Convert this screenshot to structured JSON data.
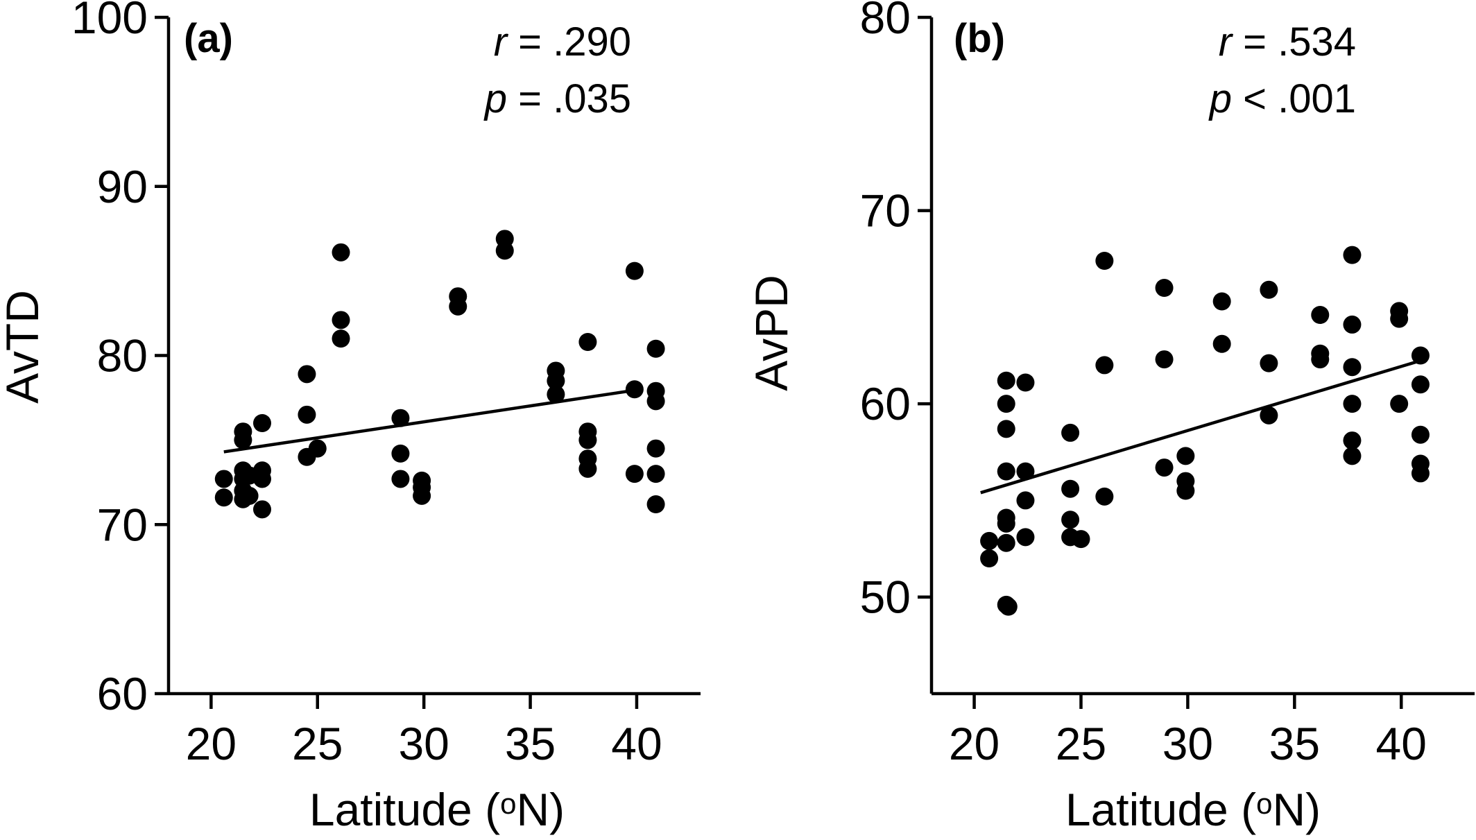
{
  "chart_data": [
    {
      "type": "scatter",
      "panel_label": "(a)",
      "xlabel": "Latitude (",
      "xlabel_sup": "o",
      "xlabel_end": "N)",
      "ylabel": "AvTD",
      "xlim": [
        18,
        43
      ],
      "ylim": [
        60,
        100
      ],
      "xticks": [
        20,
        25,
        30,
        35,
        40
      ],
      "yticks": [
        60,
        70,
        80,
        90,
        100
      ],
      "stats": {
        "r_symbol": "r",
        "r_text": " = .290",
        "p_symbol": "p",
        "p_text": " = .035"
      },
      "fit": {
        "x": [
          20.6,
          40.2
        ],
        "y": [
          74.3,
          78.0
        ]
      },
      "points": [
        [
          20.6,
          72.7
        ],
        [
          20.6,
          71.6
        ],
        [
          21.5,
          75.5
        ],
        [
          21.5,
          75.0
        ],
        [
          21.5,
          73.2
        ],
        [
          21.5,
          72.7
        ],
        [
          21.5,
          72.0
        ],
        [
          21.5,
          71.5
        ],
        [
          21.8,
          72.9
        ],
        [
          21.8,
          71.7
        ],
        [
          22.4,
          76.0
        ],
        [
          22.4,
          73.2
        ],
        [
          22.4,
          72.7
        ],
        [
          22.4,
          70.9
        ],
        [
          24.5,
          78.9
        ],
        [
          24.5,
          76.5
        ],
        [
          24.5,
          74.0
        ],
        [
          25.0,
          74.5
        ],
        [
          26.1,
          86.1
        ],
        [
          26.1,
          82.1
        ],
        [
          26.1,
          81.0
        ],
        [
          28.9,
          76.3
        ],
        [
          28.9,
          74.2
        ],
        [
          28.9,
          72.7
        ],
        [
          29.9,
          72.6
        ],
        [
          29.9,
          72.2
        ],
        [
          29.9,
          71.7
        ],
        [
          31.6,
          83.5
        ],
        [
          31.6,
          82.9
        ],
        [
          33.8,
          86.9
        ],
        [
          33.8,
          86.2
        ],
        [
          36.2,
          79.1
        ],
        [
          36.2,
          78.5
        ],
        [
          36.2,
          77.7
        ],
        [
          37.7,
          80.8
        ],
        [
          37.7,
          75.5
        ],
        [
          37.7,
          75.0
        ],
        [
          37.7,
          73.9
        ],
        [
          37.7,
          73.3
        ],
        [
          39.9,
          85.0
        ],
        [
          39.9,
          78.0
        ],
        [
          39.9,
          73.0
        ],
        [
          40.9,
          80.4
        ],
        [
          40.9,
          77.9
        ],
        [
          40.9,
          77.3
        ],
        [
          40.9,
          74.5
        ],
        [
          40.9,
          73.0
        ],
        [
          40.9,
          71.2
        ]
      ]
    },
    {
      "type": "scatter",
      "panel_label": "(b)",
      "xlabel": "Latitude (",
      "xlabel_sup": "o",
      "xlabel_end": "N)",
      "ylabel": "AvPD",
      "xlim": [
        18,
        43.5
      ],
      "ylim": [
        45,
        80
      ],
      "xticks": [
        20,
        25,
        30,
        35,
        40
      ],
      "yticks": [
        50,
        60,
        70,
        80
      ],
      "stats": {
        "r_symbol": "r",
        "r_text": " = .534",
        "p_symbol": "p",
        "p_text": " < .001"
      },
      "fit": {
        "x": [
          20.3,
          40.8
        ],
        "y": [
          55.4,
          62.2
        ]
      },
      "points": [
        [
          20.7,
          52.9
        ],
        [
          20.7,
          52.0
        ],
        [
          21.5,
          61.2
        ],
        [
          21.5,
          60.0
        ],
        [
          21.5,
          58.7
        ],
        [
          21.5,
          56.5
        ],
        [
          21.5,
          54.1
        ],
        [
          21.5,
          53.8
        ],
        [
          21.5,
          52.8
        ],
        [
          21.5,
          49.6
        ],
        [
          21.6,
          49.5
        ],
        [
          22.4,
          61.1
        ],
        [
          22.4,
          56.5
        ],
        [
          22.4,
          55.0
        ],
        [
          22.4,
          53.1
        ],
        [
          24.5,
          58.5
        ],
        [
          24.5,
          55.6
        ],
        [
          24.5,
          54.0
        ],
        [
          24.5,
          53.1
        ],
        [
          25.0,
          53.0
        ],
        [
          26.1,
          67.4
        ],
        [
          26.1,
          62.0
        ],
        [
          26.1,
          55.2
        ],
        [
          28.9,
          66.0
        ],
        [
          28.9,
          62.3
        ],
        [
          28.9,
          56.7
        ],
        [
          29.9,
          57.3
        ],
        [
          29.9,
          56.0
        ],
        [
          29.9,
          55.5
        ],
        [
          31.6,
          65.3
        ],
        [
          31.6,
          63.1
        ],
        [
          33.8,
          65.9
        ],
        [
          33.8,
          62.1
        ],
        [
          33.8,
          59.4
        ],
        [
          36.2,
          64.6
        ],
        [
          36.2,
          62.6
        ],
        [
          36.2,
          62.3
        ],
        [
          37.7,
          67.7
        ],
        [
          37.7,
          64.1
        ],
        [
          37.7,
          61.9
        ],
        [
          37.7,
          60.0
        ],
        [
          37.7,
          58.1
        ],
        [
          37.7,
          57.3
        ],
        [
          39.9,
          64.8
        ],
        [
          39.9,
          64.4
        ],
        [
          39.9,
          60.0
        ],
        [
          40.9,
          62.5
        ],
        [
          40.9,
          61.0
        ],
        [
          40.9,
          58.4
        ],
        [
          40.9,
          56.9
        ],
        [
          40.9,
          56.4
        ]
      ]
    }
  ]
}
